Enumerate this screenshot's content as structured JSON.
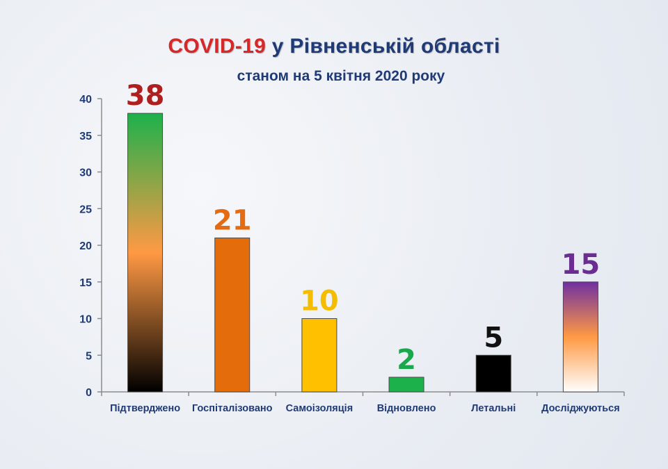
{
  "title": {
    "highlight": "COVID-19",
    "rest": "у Рівненській області"
  },
  "subtitle": "станом на 5 квітня 2020 року",
  "chart_data": {
    "type": "bar",
    "categories": [
      "Підтверджено",
      "Госпіталізовано",
      "Самоізоляція",
      "Відновлено",
      "Летальні",
      "Досліджуються"
    ],
    "values": [
      38,
      21,
      10,
      2,
      5,
      15
    ],
    "data_labels": [
      "38",
      "21",
      "10",
      "2",
      "5",
      "15"
    ],
    "label_colors": [
      "#b01f1f",
      "#e46b12",
      "#f5bd00",
      "#1aa84c",
      "#111111",
      "#6b2d91"
    ],
    "bar_fills": [
      [
        "#1db14b",
        "#ff9944",
        "#000000"
      ],
      [
        "#e46c0a",
        "#e46c0a",
        "#e46c0a"
      ],
      [
        "#ffc000",
        "#ffc000",
        "#ffc000"
      ],
      [
        "#1db14b",
        "#1db14b",
        "#1db14b"
      ],
      [
        "#000000",
        "#000000",
        "#000000"
      ],
      [
        "#7030a0",
        "#ff9944",
        "#ffffff"
      ]
    ],
    "ylim": [
      0,
      40
    ],
    "yticks": [
      "0",
      "5",
      "10",
      "15",
      "20",
      "25",
      "30",
      "35",
      "40"
    ],
    "title": "COVID-19 у Рівненській області",
    "subtitle": "станом на 5 квітня 2020 року",
    "xlabel": "",
    "ylabel": "",
    "grid": false
  }
}
